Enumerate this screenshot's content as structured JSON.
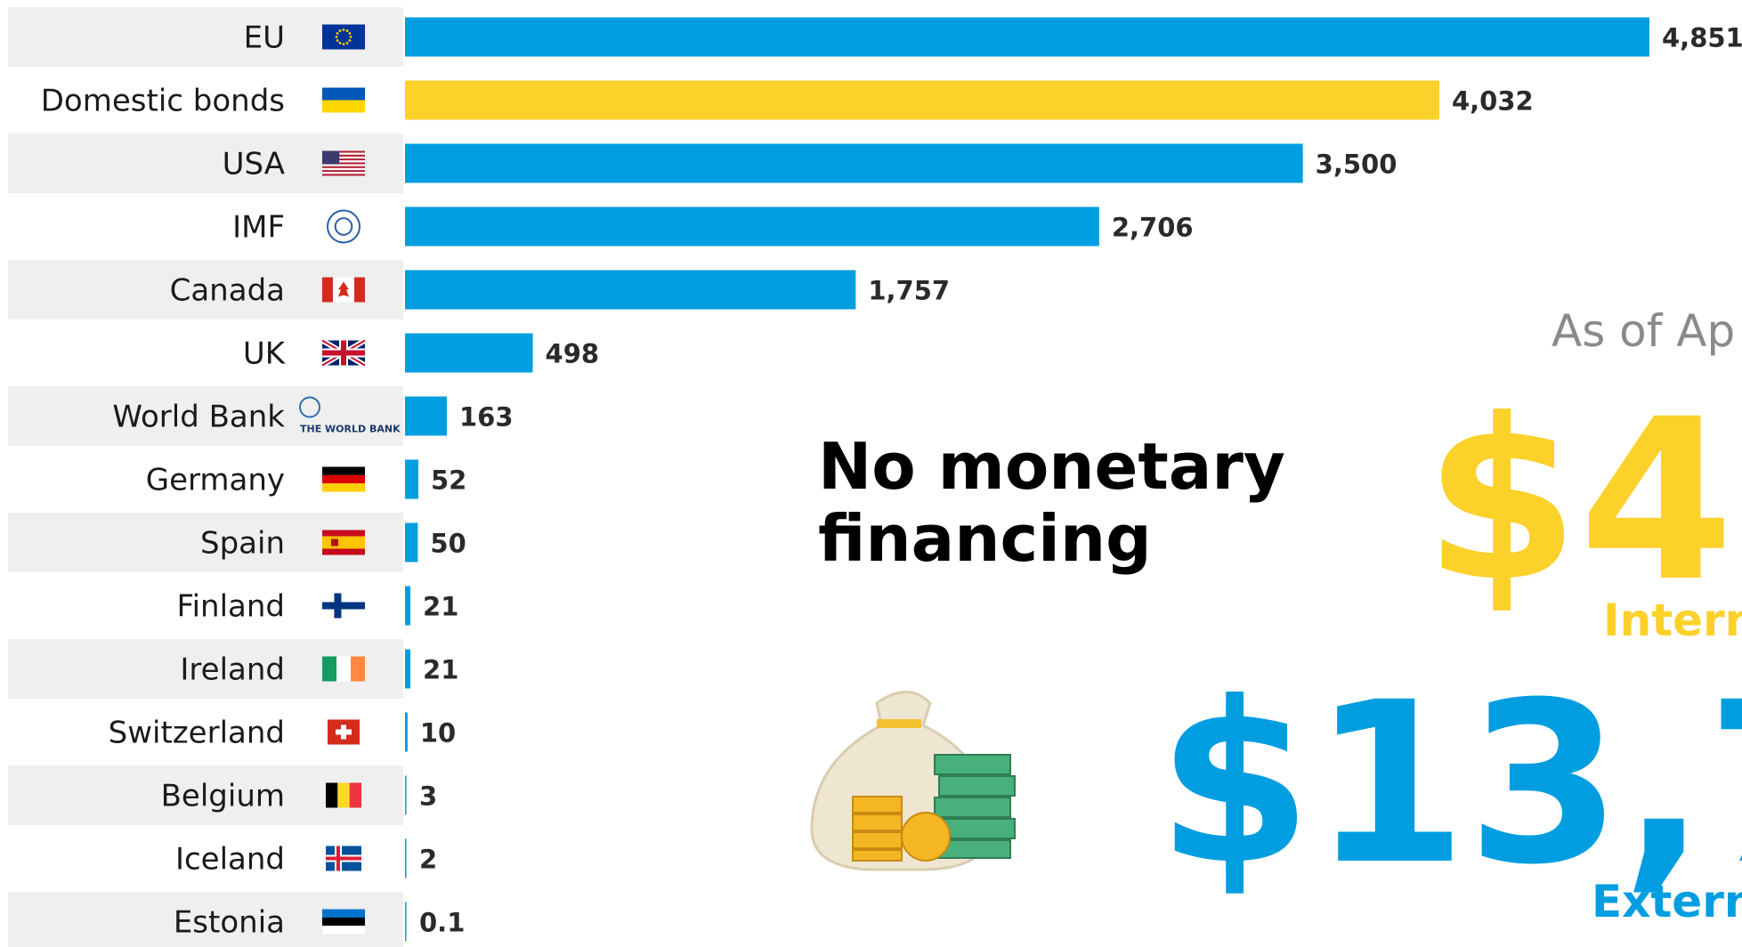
{
  "chart_data": {
    "type": "bar",
    "orientation": "horizontal",
    "categories": [
      "EU",
      "Domestic bonds",
      "USA",
      "IMF",
      "Canada",
      "UK",
      "World Bank",
      "Germany",
      "Spain",
      "Finland",
      "Ireland",
      "Switzerland",
      "Belgium",
      "Iceland",
      "Estonia"
    ],
    "values": [
      4851,
      4032,
      3500,
      2706,
      1757,
      498,
      163,
      52,
      50,
      21,
      21,
      10,
      3,
      2,
      0.1
    ],
    "value_labels": [
      "4,851",
      "4,032",
      "3,500",
      "2,706",
      "1,757",
      "498",
      "163",
      "52",
      "50",
      "21",
      "21",
      "10",
      "3",
      "2",
      "0.1"
    ],
    "colors": [
      "#009ee0",
      "#fcd12a",
      "#009ee0",
      "#009ee0",
      "#009ee0",
      "#009ee0",
      "#009ee0",
      "#009ee0",
      "#009ee0",
      "#009ee0",
      "#009ee0",
      "#009ee0",
      "#009ee0",
      "#009ee0",
      "#009ee0"
    ],
    "logo_text": "THE WORLD BANK",
    "annotations": {
      "headline": [
        "No monetary",
        "financing"
      ],
      "as_of": "As of Ap",
      "internal_amount": "$4",
      "internal_label": "Intern",
      "external_amount": "$13,7",
      "external_label": "Extern"
    }
  }
}
